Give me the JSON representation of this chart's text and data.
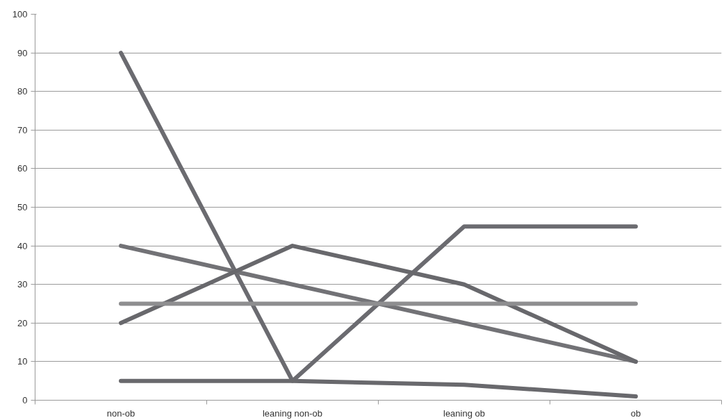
{
  "chart_data": {
    "type": "line",
    "categories": [
      "non-ob",
      "leaning non-ob",
      "leaning ob",
      "ob"
    ],
    "series": [
      {
        "color": "#6b6b70",
        "values": [
          90,
          5,
          45,
          45
        ]
      },
      {
        "color": "#727276",
        "values": [
          40,
          30,
          20,
          10
        ]
      },
      {
        "color": "#68686c",
        "values": [
          20,
          40,
          30,
          10
        ]
      },
      {
        "color": "#8e8e90",
        "values": [
          25,
          25,
          25,
          25
        ]
      },
      {
        "color": "#69696d",
        "values": [
          5,
          5,
          4,
          1
        ]
      }
    ],
    "ylim": [
      0,
      100
    ],
    "yticks": [
      0,
      10,
      20,
      30,
      40,
      50,
      60,
      70,
      80,
      90,
      100
    ],
    "grid": "y",
    "marker": "none",
    "line_style": "solid"
  }
}
